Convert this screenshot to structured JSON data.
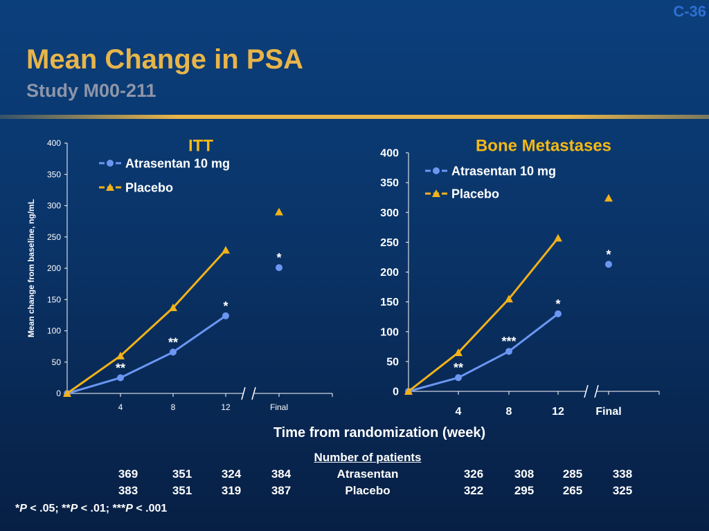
{
  "slide_number": "C-36",
  "title": "Mean Change in PSA",
  "subtitle": "Study M00-211",
  "xlabel": "Time from randomization (week)",
  "patients": {
    "heading": "Number of patients",
    "rows": [
      {
        "label": "Atrasentan",
        "itt": [
          "369",
          "351",
          "324",
          "384"
        ],
        "bone": [
          "326",
          "308",
          "285",
          "338"
        ]
      },
      {
        "label": "Placebo",
        "itt": [
          "383",
          "351",
          "319",
          "387"
        ],
        "bone": [
          "322",
          "295",
          "265",
          "325"
        ]
      }
    ]
  },
  "footnote": {
    "s1": "*",
    "p1": "P",
    "t1": " < .05; ",
    "s2": "**",
    "p2": "P",
    "t2": " < .01; ",
    "s3": "***",
    "p3": "P",
    "t3": " < .001"
  },
  "colors": {
    "atrasentan": "#6b96f2",
    "placebo": "#f2b21a",
    "title_gold": "#e8b54a",
    "panel_title": "#f5b914"
  },
  "chart_data": [
    {
      "type": "line",
      "title": "ITT",
      "ylabel": "Mean change from baseline, ng/mL",
      "ylim": [
        0,
        400
      ],
      "yticks": [
        "0",
        "50",
        "100",
        "150",
        "200",
        "250",
        "300",
        "350",
        "400"
      ],
      "categories": [
        "4",
        "8",
        "12",
        "Final"
      ],
      "series": [
        {
          "name": "Atrasentan 10 mg",
          "marker": "circle",
          "x": [
            0,
            4,
            8,
            12
          ],
          "values": [
            0,
            25,
            66,
            124
          ],
          "final": 201
        },
        {
          "name": "Placebo",
          "marker": "triangle",
          "x": [
            0,
            4,
            8,
            12
          ],
          "values": [
            0,
            60,
            137,
            229
          ],
          "final": 290
        }
      ],
      "annotations": [
        {
          "x": "4",
          "text": "**"
        },
        {
          "x": "8",
          "text": "**"
        },
        {
          "x": "12",
          "text": "*"
        },
        {
          "x": "Final",
          "text": "*"
        }
      ]
    },
    {
      "type": "line",
      "title": "Bone Metastases",
      "ylim": [
        0,
        400
      ],
      "yticks": [
        "0",
        "50",
        "100",
        "150",
        "200",
        "250",
        "300",
        "350",
        "400"
      ],
      "categories": [
        "4",
        "8",
        "12",
        "Final"
      ],
      "series": [
        {
          "name": "Atrasentan 10 mg",
          "marker": "circle",
          "x": [
            0,
            4,
            8,
            12
          ],
          "values": [
            0,
            23,
            67,
            130
          ],
          "final": 213
        },
        {
          "name": "Placebo",
          "marker": "triangle",
          "x": [
            0,
            4,
            8,
            12
          ],
          "values": [
            0,
            65,
            155,
            257
          ],
          "final": 324
        }
      ],
      "annotations": [
        {
          "x": "4",
          "text": "**"
        },
        {
          "x": "8",
          "text": "***"
        },
        {
          "x": "12",
          "text": "*"
        },
        {
          "x": "Final",
          "text": "*"
        }
      ]
    }
  ]
}
